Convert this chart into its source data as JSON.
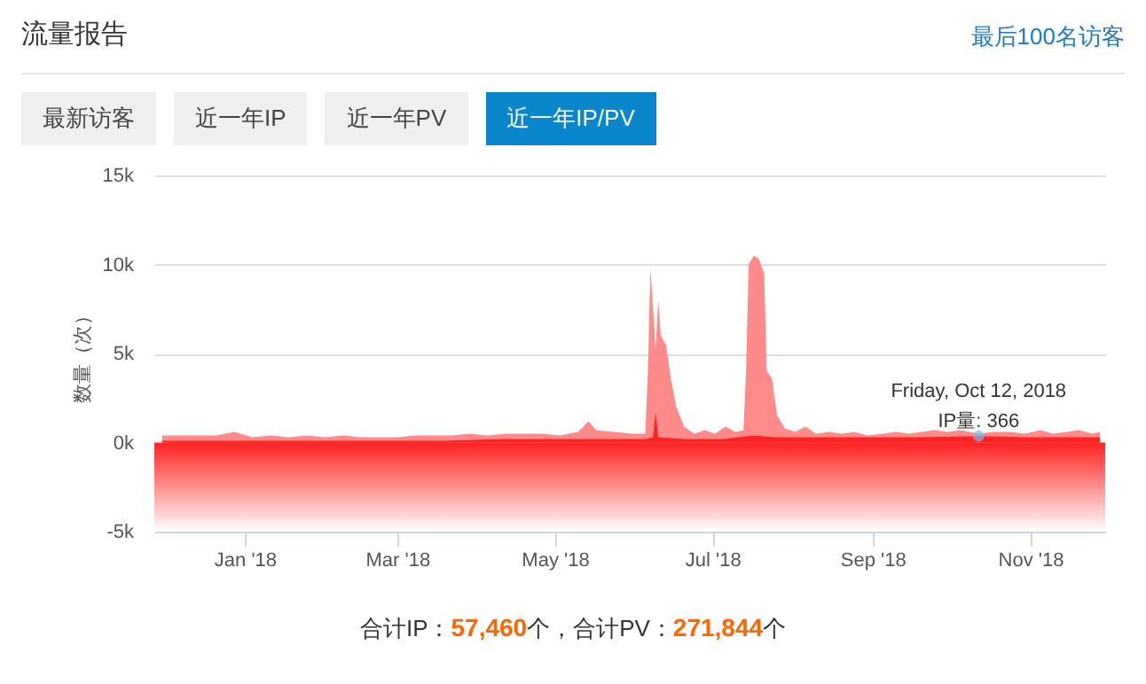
{
  "chart_data": {
    "type": "area",
    "title": "流量报告",
    "ylabel": "数量（次）",
    "annotations": [
      "最后100名访客",
      "最新访客",
      "近一年IP",
      "近一年PV",
      "近一年IP/PV",
      {
        "text": "Friday, Oct 12, 2018\nIP量: 366",
        "x": "2018-10-12",
        "y": 366
      },
      "合计IP：57,460个，合计PV：271,844个"
    ],
    "series": [
      {
        "color": "#ff8a8a",
        "x": [
          "2017-11-30",
          "2017-12-07",
          "2017-12-14",
          "2017-12-21",
          "2017-12-28",
          "2018-01-04",
          "2018-01-11",
          "2018-01-18",
          "2018-01-25",
          "2018-02-01",
          "2018-02-08",
          "2018-02-15",
          "2018-02-22",
          "2018-03-01",
          "2018-03-08",
          "2018-03-15",
          "2018-03-22",
          "2018-03-29",
          "2018-04-05",
          "2018-04-12",
          "2018-04-19",
          "2018-04-26",
          "2018-05-03",
          "2018-05-10",
          "2018-05-14",
          "2018-05-17",
          "2018-05-24",
          "2018-05-31",
          "2018-06-05",
          "2018-06-06",
          "2018-06-07",
          "2018-06-08",
          "2018-06-09",
          "2018-06-10",
          "2018-06-11",
          "2018-06-13",
          "2018-06-15",
          "2018-06-17",
          "2018-06-20",
          "2018-06-24",
          "2018-06-28",
          "2018-07-02",
          "2018-07-06",
          "2018-07-10",
          "2018-07-13",
          "2018-07-14",
          "2018-07-15",
          "2018-07-17",
          "2018-07-19",
          "2018-07-21",
          "2018-07-22",
          "2018-07-24",
          "2018-07-26",
          "2018-07-29",
          "2018-08-02",
          "2018-08-06",
          "2018-08-10",
          "2018-08-15",
          "2018-08-20",
          "2018-08-25",
          "2018-08-30",
          "2018-09-05",
          "2018-09-10",
          "2018-09-15",
          "2018-09-20",
          "2018-09-25",
          "2018-09-30",
          "2018-10-05",
          "2018-10-12",
          "2018-10-18",
          "2018-10-24",
          "2018-10-30",
          "2018-11-05",
          "2018-11-10",
          "2018-11-15",
          "2018-11-20",
          "2018-11-25",
          "2018-11-28"
        ],
        "values": [
          400,
          400,
          400,
          400,
          600,
          300,
          400,
          300,
          400,
          300,
          400,
          300,
          300,
          300,
          400,
          400,
          400,
          500,
          400,
          500,
          500,
          500,
          400,
          600,
          1200,
          700,
          600,
          500,
          500,
          4000,
          9800,
          7500,
          5200,
          8000,
          6000,
          5500,
          3500,
          2000,
          900,
          500,
          700,
          500,
          900,
          600,
          700,
          4000,
          10000,
          10500,
          10300,
          9500,
          4000,
          3600,
          1500,
          800,
          600,
          900,
          500,
          600,
          500,
          600,
          400,
          500,
          600,
          500,
          600,
          700,
          600,
          700,
          500,
          600,
          600,
          500,
          700,
          500,
          600,
          700,
          500,
          600
        ]
      },
      {
        "color": "#ff2222",
        "x": [
          "2017-11-30",
          "2017-12-15",
          "2018-01-01",
          "2018-01-20",
          "2018-02-10",
          "2018-03-01",
          "2018-03-20",
          "2018-04-10",
          "2018-05-01",
          "2018-05-20",
          "2018-06-05",
          "2018-06-08",
          "2018-06-09",
          "2018-06-10",
          "2018-06-20",
          "2018-07-05",
          "2018-07-17",
          "2018-07-25",
          "2018-08-10",
          "2018-09-01",
          "2018-09-20",
          "2018-10-12",
          "2018-10-30",
          "2018-11-15",
          "2018-11-28"
        ],
        "values": [
          100,
          100,
          100,
          100,
          100,
          100,
          100,
          200,
          200,
          200,
          200,
          300,
          1700,
          300,
          200,
          200,
          400,
          300,
          300,
          300,
          300,
          366,
          300,
          300,
          300
        ]
      }
    ],
    "xlim": [
      "2017-11-27",
      "2018-11-30"
    ],
    "xticks": [
      {
        "value": "2018-01-01",
        "label": "Jan '18"
      },
      {
        "value": "2018-03-01",
        "label": "Mar '18"
      },
      {
        "value": "2018-05-01",
        "label": "May '18"
      },
      {
        "value": "2018-07-01",
        "label": "Jul '18"
      },
      {
        "value": "2018-09-01",
        "label": "Sep '18"
      },
      {
        "value": "2018-11-01",
        "label": "Nov '18"
      }
    ],
    "ylim": [
      -5000,
      15000
    ],
    "yticks": [
      {
        "value": -5000,
        "label": "-5k"
      },
      {
        "value": 0,
        "label": "0k"
      },
      {
        "value": 5000,
        "label": "5k"
      },
      {
        "value": 10000,
        "label": "10k"
      },
      {
        "value": 15000,
        "label": "15k"
      }
    ],
    "bands": [
      {
        "axis": "y",
        "from": -5000,
        "to": 0,
        "color": "#ff2222"
      }
    ],
    "grid": "y"
  }
}
